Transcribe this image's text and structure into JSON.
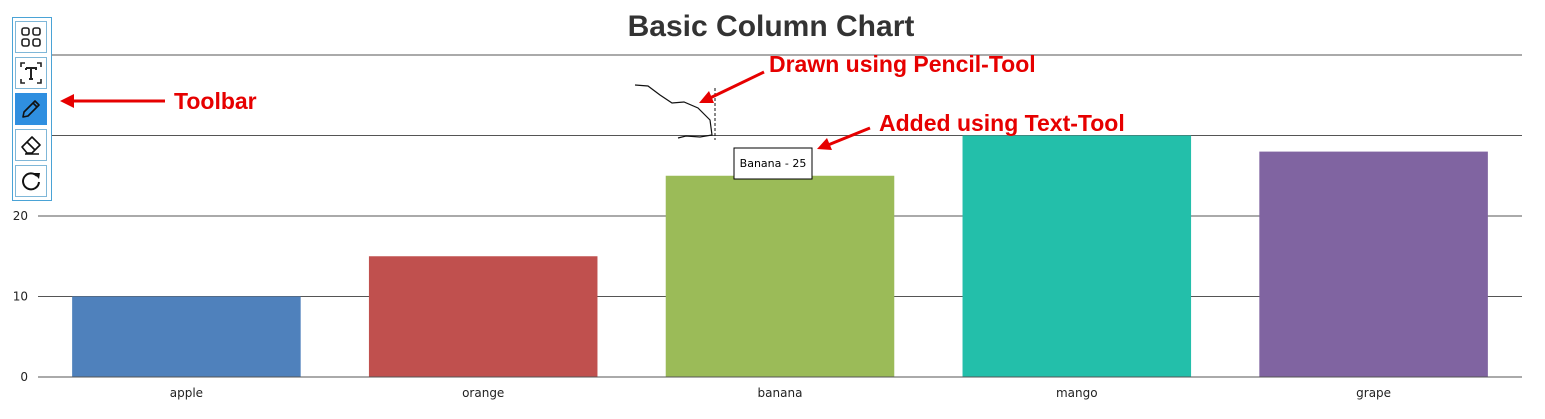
{
  "chart_data": {
    "type": "bar",
    "title": "Basic Column Chart",
    "categories": [
      "apple",
      "orange",
      "banana",
      "mango",
      "grape"
    ],
    "values": [
      10,
      15,
      25,
      30,
      28
    ],
    "colors": [
      "#4f81bc",
      "#c0504e",
      "#9bbb58",
      "#23bfaa",
      "#8064a1"
    ],
    "yticks": [
      0,
      10,
      20
    ],
    "ylim": [
      0,
      40
    ],
    "grid": true,
    "xlabel": "",
    "ylabel": ""
  },
  "annotations": {
    "toolbar_label": "Toolbar",
    "pencil_label": "Drawn using Pencil-Tool",
    "text_label": "Added using Text-Tool",
    "text_note": "Banana - 25",
    "color": "#e60000"
  },
  "toolbar": {
    "tools": [
      {
        "name": "layout-icon",
        "active": false
      },
      {
        "name": "text-tool-icon",
        "active": false
      },
      {
        "name": "pencil-icon",
        "active": true
      },
      {
        "name": "eraser-icon",
        "active": false
      },
      {
        "name": "reset-icon",
        "active": false
      }
    ]
  }
}
